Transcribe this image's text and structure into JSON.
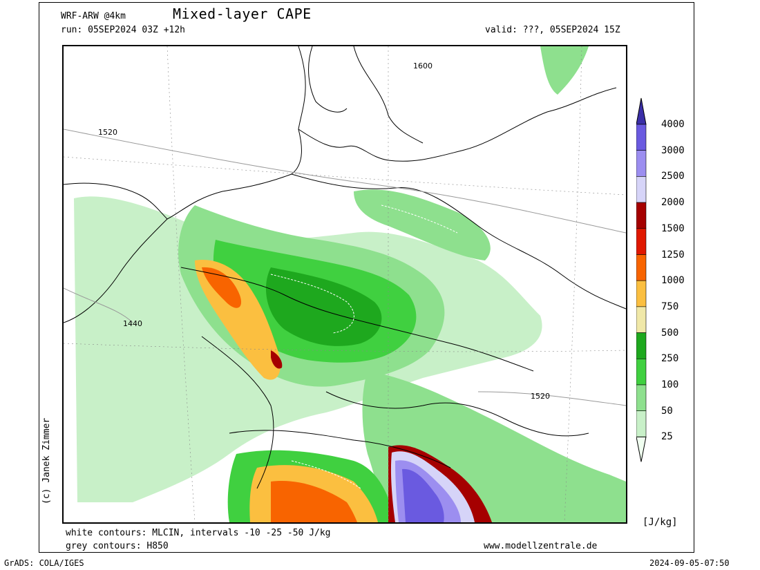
{
  "header": {
    "model": "WRF-ARW @4km",
    "title": "Mixed-layer CAPE",
    "run": "run: 05SEP2024 03Z +12h",
    "valid": "valid: ???, 05SEP2024 15Z"
  },
  "footer": {
    "contours_white": "white contours: MLCIN, intervals -10 -25 -50 J/kg",
    "contours_grey": "grey contours: H850",
    "website": "www.modellzentrale.de",
    "grads": "GrADS: COLA/IGES",
    "timestamp": "2024-09-05-07:50"
  },
  "credit": "(c) Janek Zimmer",
  "map": {
    "isoline_labels": [
      "1600",
      "1520",
      "1440",
      "1520"
    ]
  },
  "colorbar": {
    "unit": "[J/kg]",
    "levels": [
      "4000",
      "3000",
      "2500",
      "2000",
      "1500",
      "1250",
      "1000",
      "750",
      "500",
      "250",
      "100",
      "50",
      "25"
    ],
    "colors": [
      "#3b2fa8",
      "#6a5ae0",
      "#9c8ef0",
      "#d6d4f8",
      "#a50000",
      "#e01800",
      "#f86400",
      "#fbbf40",
      "#f0e8a8",
      "#1ea81e",
      "#40d040",
      "#8ee08e",
      "#c8f0c8",
      "#f0fff0"
    ]
  }
}
